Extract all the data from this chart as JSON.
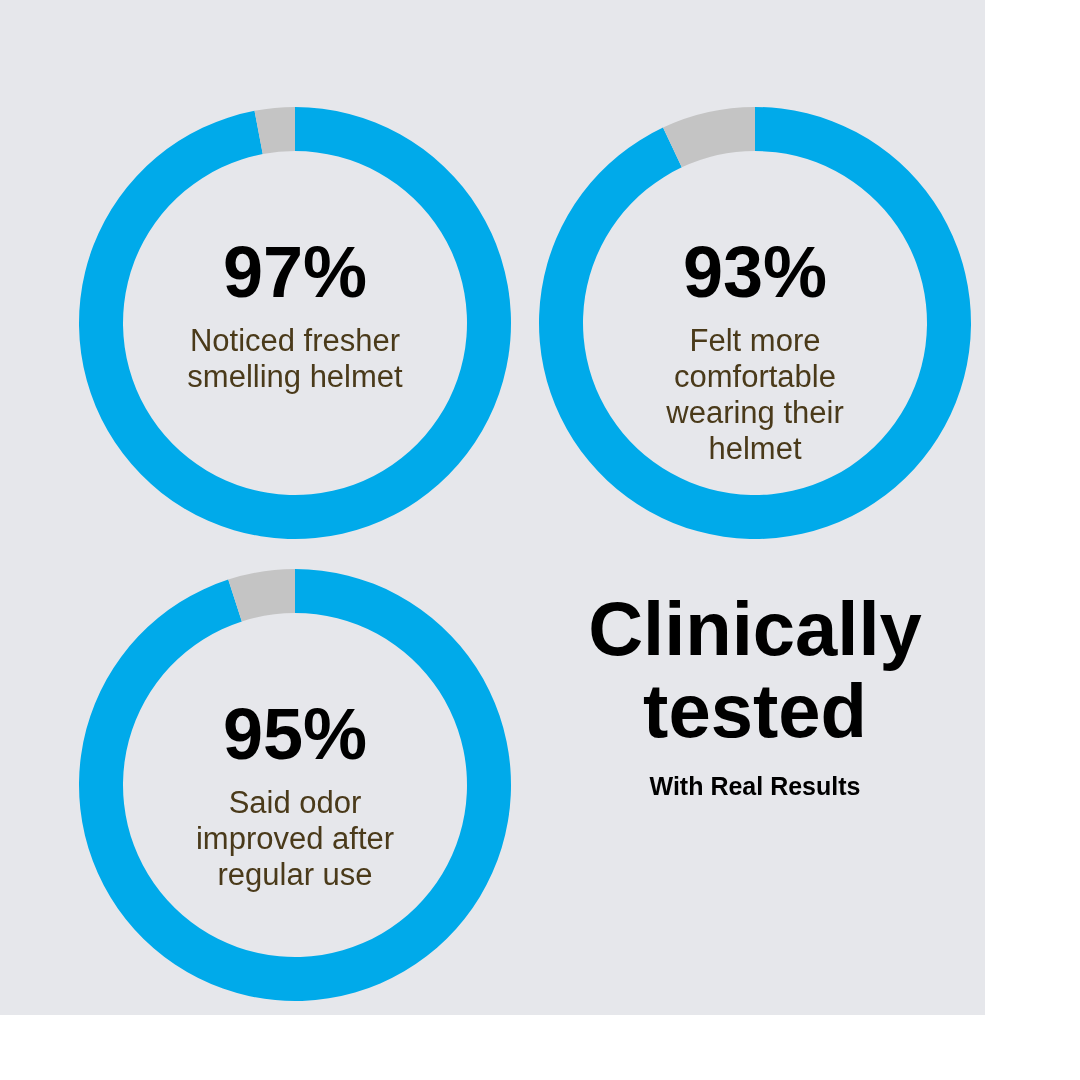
{
  "chart_data": [
    {
      "type": "donut",
      "categories": [
        null,
        null
      ],
      "values": [
        97,
        3
      ],
      "colors": [
        "#00aaea",
        "#c4c4c4"
      ],
      "annotations": [
        "97%",
        "Noticed fresher smelling helmet"
      ]
    },
    {
      "type": "donut",
      "categories": [
        null,
        null
      ],
      "values": [
        93,
        7
      ],
      "colors": [
        "#00aaea",
        "#c4c4c4"
      ],
      "annotations": [
        "93%",
        "Felt more comfortable wearing their helmet"
      ]
    },
    {
      "type": "donut",
      "categories": [
        null,
        null
      ],
      "values": [
        95,
        5
      ],
      "colors": [
        "#00aaea",
        "#c4c4c4"
      ],
      "annotations": [
        "95%",
        "Said odor improved after regular use"
      ]
    },
    {
      "type": "other",
      "title": "Clinically tested",
      "subtitle": "With Real Results"
    }
  ]
}
